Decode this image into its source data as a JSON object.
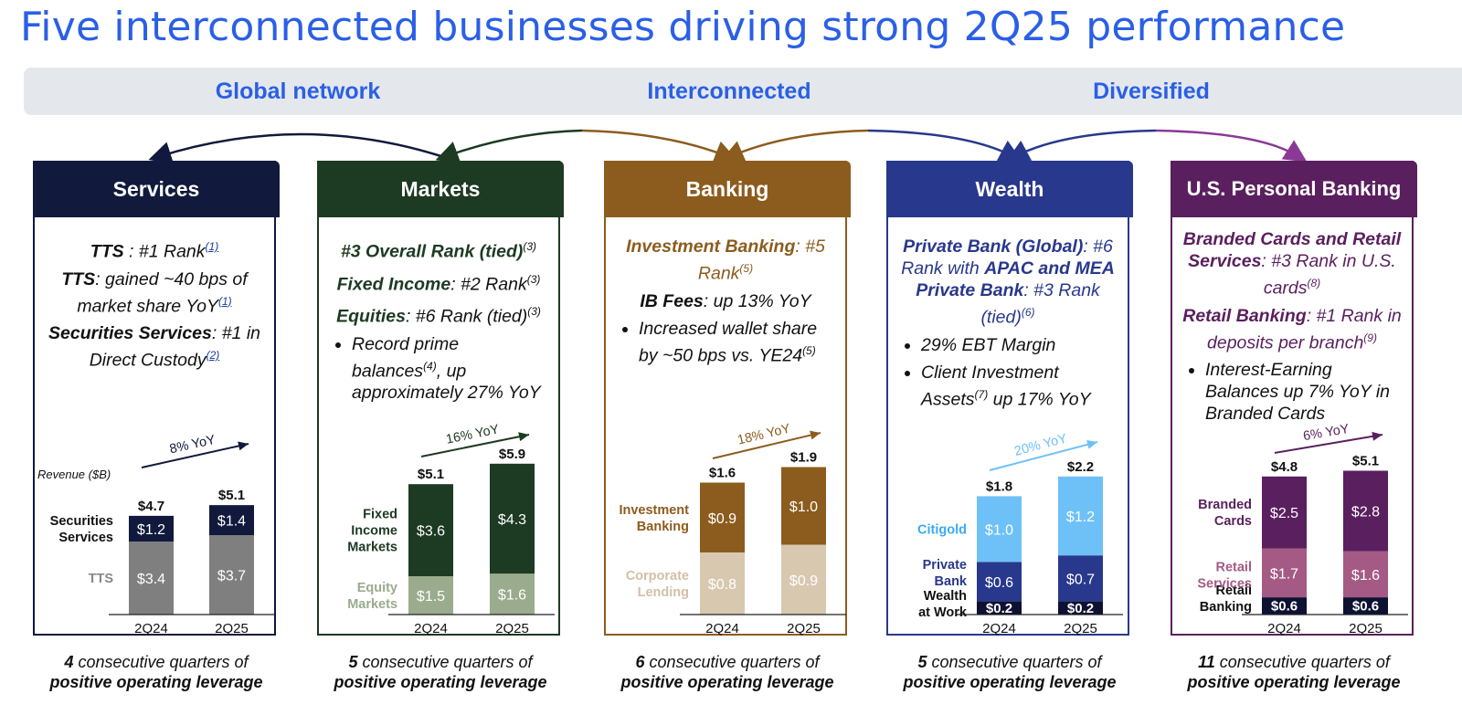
{
  "title": "Five interconnected businesses driving strong 2Q25 performance",
  "band": {
    "left": "Global network",
    "center": "Interconnected",
    "right": "Diversified"
  },
  "colors": {
    "title": "#2a5fe6",
    "services": "#111a3c",
    "markets": "#1d3a22",
    "banking": "#8c5c1e",
    "wealth": "#28388c",
    "usbanking": "#5a1f5e"
  },
  "panels": {
    "services": {
      "header": "Services",
      "l1a": "TTS",
      "l1b": " : #1 Rank",
      "l1n": "(1)",
      "l2a": "TTS",
      "l2b": ": gained ~40 bps of market share YoY",
      "l2n": "(1)",
      "l3a": "Securities Services",
      "l3b": ": #1 in Direct Custody",
      "l3n": "(2)",
      "footer_count": "4",
      "footer_rest": " consecutive quarters of",
      "footer_line2": "positive operating leverage"
    },
    "markets": {
      "header": "Markets",
      "l1a": "#3 Overall Rank (tied)",
      "l1n": "(3)",
      "l2a": "Fixed Income",
      "l2b": ": #2 Rank",
      "l2n": "(3)",
      "l3a": "Equities",
      "l3b": ": #6 Rank (tied)",
      "l3n": "(3)",
      "b1a": "Record prime balances",
      "b1n": "(4)",
      "b1b": ", up approximately 27% YoY",
      "footer_count": "5",
      "footer_rest": " consecutive quarters of",
      "footer_line2": "positive operating leverage"
    },
    "banking": {
      "header": "Banking",
      "l1a": "Investment Banking",
      "l1b": ": #5 Rank",
      "l1n": "(5)",
      "l2a": "IB Fees",
      "l2b": ": up 13% YoY",
      "b1a": "Increased wallet share by ~50 bps vs. YE24",
      "b1n": "(5)",
      "footer_count": "6",
      "footer_rest": " consecutive quarters of",
      "footer_line2": "positive operating leverage"
    },
    "wealth": {
      "header": "Wealth",
      "l1a": "Private Bank (Global)",
      "l1b": ": #6 Rank with ",
      "l1c": "APAC and MEA Private Bank",
      "l1d": ": #3 Rank (tied)",
      "l1n": "(6)",
      "b1": "29% EBT Margin",
      "b2a": "Client Investment Assets",
      "b2n": "(7)",
      "b2b": " up 17% YoY",
      "footer_count": "5",
      "footer_rest": " consecutive quarters of",
      "footer_line2": "positive operating leverage"
    },
    "usbanking": {
      "header": "U.S. Personal Banking",
      "l1a": "Branded Cards and Retail Services",
      "l1b": ": #3 Rank in U.S. cards",
      "l1n": "(8)",
      "l2a": "Retail Banking",
      "l2b": ": #1 Rank in deposits per branch",
      "l2n": "(9)",
      "b1": "Interest-Earning Balances up 7% YoY in Branded Cards",
      "footer_count": "11",
      "footer_rest": " consecutive quarters of",
      "footer_line2": "positive operating leverage"
    }
  },
  "chart_data": [
    {
      "type": "bar",
      "title": "Services",
      "ylabel": "Revenue ($B)",
      "categories": [
        "2Q24",
        "2Q25"
      ],
      "totals": [
        "$4.7",
        "$5.1"
      ],
      "growth": "8% YoY",
      "series": [
        {
          "name": "TTS",
          "values": [
            3.4,
            3.7
          ],
          "labels": [
            "$3.4",
            "$3.7"
          ],
          "color": "#7f7f7f",
          "label_color": "#888888"
        },
        {
          "name": "Securities Services",
          "values": [
            1.2,
            1.4
          ],
          "labels": [
            "$1.2",
            "$1.4"
          ],
          "color": "#111a3c",
          "label_color": "#111111"
        }
      ]
    },
    {
      "type": "bar",
      "title": "Markets",
      "categories": [
        "2Q24",
        "2Q25"
      ],
      "totals": [
        "$5.1",
        "$5.9"
      ],
      "growth": "16% YoY",
      "series": [
        {
          "name": "Equity Markets",
          "values": [
            1.5,
            1.6
          ],
          "labels": [
            "$1.5",
            "$1.6"
          ],
          "color": "#9aab8e",
          "label_color": "#9aab8e"
        },
        {
          "name": "Fixed Income Markets",
          "values": [
            3.6,
            4.3
          ],
          "labels": [
            "$3.6",
            "$4.3"
          ],
          "color": "#1d3a22",
          "label_color": "#1d3a22"
        }
      ]
    },
    {
      "type": "bar",
      "title": "Banking",
      "categories": [
        "2Q24",
        "2Q25"
      ],
      "totals": [
        "$1.6",
        "$1.9"
      ],
      "growth": "18% YoY",
      "series": [
        {
          "name": "Corporate Lending",
          "values": [
            0.8,
            0.9
          ],
          "labels": [
            "$0.8",
            "$0.9"
          ],
          "color": "#d8c8b0",
          "label_color": "#d2c0a6"
        },
        {
          "name": "Investment Banking",
          "values": [
            0.9,
            1.0
          ],
          "labels": [
            "$0.9",
            "$1.0"
          ],
          "color": "#8c5c1e",
          "label_color": "#8c5c1e"
        }
      ]
    },
    {
      "type": "bar",
      "title": "Wealth",
      "categories": [
        "2Q24",
        "2Q25"
      ],
      "totals": [
        "$1.8",
        "$2.2"
      ],
      "growth": "20% YoY",
      "series": [
        {
          "name": "Wealth at Work",
          "values": [
            0.2,
            0.2
          ],
          "labels": [
            "$0.2",
            "$0.2"
          ],
          "color": "#0d1233",
          "label_color": "#111111"
        },
        {
          "name": "Private Bank",
          "values": [
            0.6,
            0.7
          ],
          "labels": [
            "$0.6",
            "$0.7"
          ],
          "color": "#28388c",
          "label_color": "#28388c"
        },
        {
          "name": "Citigold",
          "values": [
            1.0,
            1.2
          ],
          "labels": [
            "$1.0",
            "$1.2"
          ],
          "color": "#6ec1f7",
          "label_color": "#3aaaf2"
        }
      ]
    },
    {
      "type": "bar",
      "title": "U.S. Personal Banking",
      "categories": [
        "2Q24",
        "2Q25"
      ],
      "totals": [
        "$4.8",
        "$5.1"
      ],
      "growth": "6% YoY",
      "series": [
        {
          "name": "Retail Banking",
          "values": [
            0.6,
            0.6
          ],
          "labels": [
            "$0.6",
            "$0.6"
          ],
          "color": "#0d1233",
          "label_color": "#111111"
        },
        {
          "name": "Retail Services",
          "values": [
            1.7,
            1.6
          ],
          "labels": [
            "$1.7",
            "$1.6"
          ],
          "color": "#a45a84",
          "label_color": "#a45a84"
        },
        {
          "name": "Branded Cards",
          "values": [
            2.5,
            2.8
          ],
          "labels": [
            "$2.5",
            "$2.8"
          ],
          "color": "#5a1f5e",
          "label_color": "#5a1f5e"
        }
      ]
    }
  ]
}
